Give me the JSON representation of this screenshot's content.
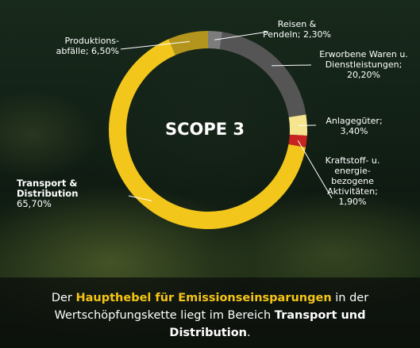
{
  "chart_data": {
    "type": "pie",
    "style": "donut",
    "center_label": "SCOPE 3",
    "slices": [
      {
        "name": "Reisen & Pendeln",
        "value": 2.3,
        "label_lines": [
          "Reisen &",
          "Pendeln; 2,30%"
        ],
        "color": "#7c7c7c"
      },
      {
        "name": "Erworbene Waren u. Dienstleistungen",
        "value": 20.2,
        "label_lines": [
          "Erworbene Waren u.",
          "Dienstleistungen;",
          "20,20%"
        ],
        "color": "#555555"
      },
      {
        "name": "Anlagegüter",
        "value": 3.4,
        "label_lines": [
          "Anlagegüter;",
          "3,40%"
        ],
        "color": "#f6e58f"
      },
      {
        "name": "Kraftstoff- u. energiebezogene Aktivitäten",
        "value": 1.9,
        "label_lines": [
          "Kraftstoff- u.",
          "energie-",
          "bezogene",
          "Aktivitäten;",
          "1,90%"
        ],
        "color": "#c8241f"
      },
      {
        "name": "Transport & Distribution",
        "value": 65.7,
        "label_lines": [
          "Transport &",
          "Distribution",
          "65,70%"
        ],
        "color": "#f3c61c"
      },
      {
        "name": "Produktionsabfälle",
        "value": 6.5,
        "label_lines": [
          "Produktions-",
          "abfälle; 6,50%"
        ],
        "color": "#b3951d"
      }
    ]
  },
  "caption": {
    "part1": "Der ",
    "highlight": "Haupthebel für Emissionseinsparungen",
    "part2": " in der Wertschöpfungskette liegt im Bereich ",
    "bold": "Transport und Distribution",
    "part3": "."
  }
}
